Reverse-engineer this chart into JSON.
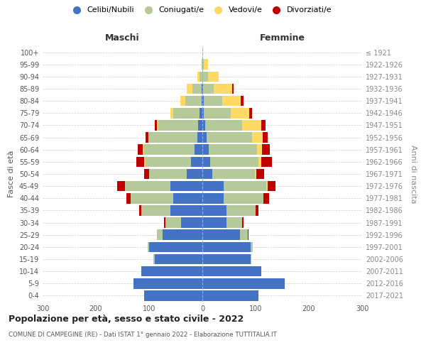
{
  "age_groups": [
    "0-4",
    "5-9",
    "10-14",
    "15-19",
    "20-24",
    "25-29",
    "30-34",
    "35-39",
    "40-44",
    "45-49",
    "50-54",
    "55-59",
    "60-64",
    "65-69",
    "70-74",
    "75-79",
    "80-84",
    "85-89",
    "90-94",
    "95-99",
    "100+"
  ],
  "birth_years": [
    "2017-2021",
    "2012-2016",
    "2007-2011",
    "2002-2006",
    "1997-2001",
    "1992-1996",
    "1987-1991",
    "1982-1986",
    "1977-1981",
    "1972-1976",
    "1967-1971",
    "1962-1966",
    "1957-1961",
    "1952-1956",
    "1947-1951",
    "1942-1946",
    "1937-1941",
    "1932-1936",
    "1927-1931",
    "1922-1926",
    "≤ 1921"
  ],
  "maschi": {
    "celibi": [
      110,
      130,
      115,
      90,
      100,
      75,
      40,
      60,
      55,
      60,
      30,
      22,
      15,
      10,
      8,
      5,
      2,
      1,
      0,
      0,
      0
    ],
    "coniugati": [
      0,
      0,
      0,
      2,
      3,
      10,
      30,
      55,
      80,
      85,
      70,
      85,
      95,
      90,
      75,
      50,
      30,
      18,
      5,
      1,
      0
    ],
    "vedovi": [
      0,
      0,
      0,
      0,
      0,
      0,
      0,
      0,
      0,
      0,
      0,
      2,
      2,
      2,
      2,
      5,
      10,
      10,
      5,
      1,
      0
    ],
    "divorziati": [
      0,
      0,
      0,
      0,
      0,
      0,
      2,
      4,
      8,
      15,
      10,
      15,
      10,
      5,
      5,
      0,
      0,
      0,
      0,
      0,
      0
    ]
  },
  "femmine": {
    "nubili": [
      105,
      155,
      110,
      90,
      90,
      70,
      45,
      45,
      40,
      40,
      18,
      15,
      12,
      8,
      5,
      3,
      2,
      1,
      0,
      0,
      0
    ],
    "coniugate": [
      0,
      0,
      0,
      2,
      5,
      15,
      30,
      55,
      75,
      80,
      80,
      90,
      90,
      85,
      70,
      50,
      35,
      20,
      10,
      2,
      0
    ],
    "vedove": [
      0,
      0,
      0,
      0,
      0,
      0,
      0,
      0,
      0,
      2,
      3,
      5,
      10,
      20,
      35,
      35,
      35,
      35,
      20,
      8,
      1
    ],
    "divorziate": [
      0,
      0,
      0,
      0,
      0,
      2,
      2,
      5,
      10,
      15,
      15,
      20,
      15,
      10,
      8,
      5,
      5,
      3,
      0,
      0,
      0
    ]
  },
  "colors": {
    "celibi": "#4472c4",
    "coniugati": "#b5c99a",
    "vedovi": "#ffd966",
    "divorziati": "#c00000"
  },
  "xlim": 300,
  "title": "Popolazione per età, sesso e stato civile - 2022",
  "subtitle": "COMUNE DI CAMPEGINE (RE) - Dati ISTAT 1° gennaio 2022 - Elaborazione TUTTITALIA.IT",
  "ylabel_left": "Fasce di età",
  "ylabel_right": "Anni di nascita",
  "xlabel_left": "Maschi",
  "xlabel_right": "Femmine",
  "legend_labels": [
    "Celibi/Nubili",
    "Coniugati/e",
    "Vedovi/e",
    "Divorziati/e"
  ]
}
